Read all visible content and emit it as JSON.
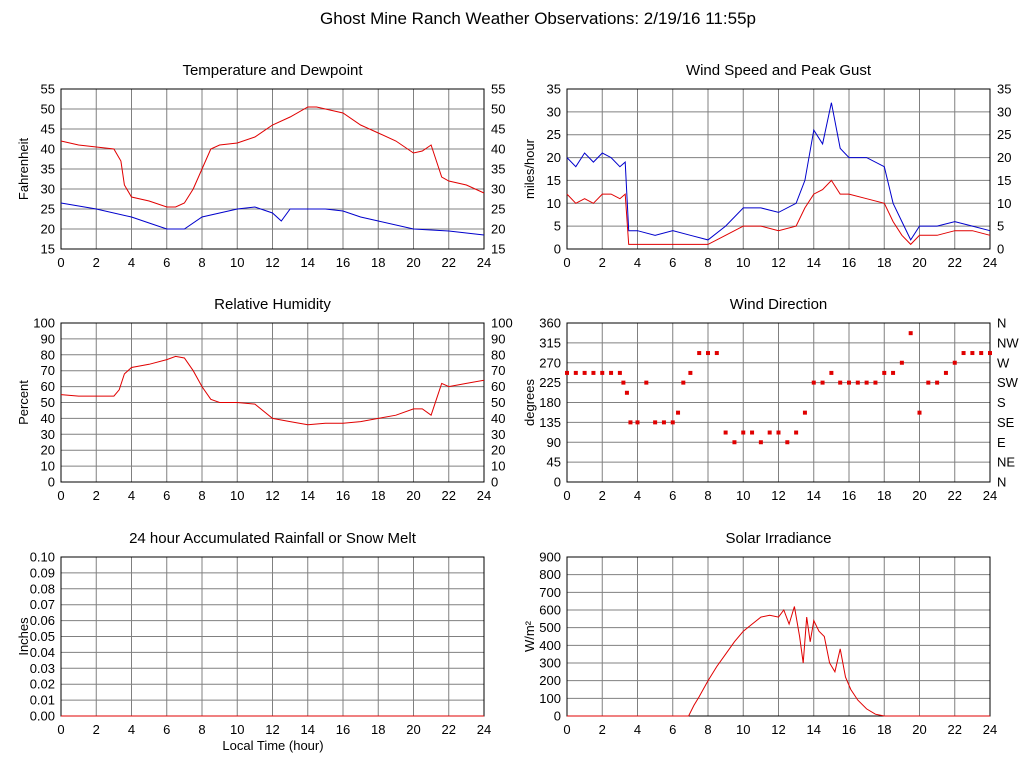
{
  "page": {
    "title": "Ghost Mine Ranch Weather Observations: 2/19/16 11:55p",
    "xlabel_bottom": "Local Time (hour)"
  },
  "chart_data": [
    {
      "id": "temp",
      "type": "line",
      "title": "Temperature and Dewpoint",
      "ylabel": "Fahrenheit",
      "xlabel": "",
      "xlim": [
        0,
        24
      ],
      "ylim": [
        15,
        55
      ],
      "xticks": [
        "0",
        "2",
        "4",
        "6",
        "8",
        "10",
        "12",
        "14",
        "16",
        "18",
        "20",
        "22",
        "24"
      ],
      "yticks": [
        "15",
        "20",
        "25",
        "30",
        "35",
        "40",
        "45",
        "50",
        "55"
      ],
      "right_yticks": [
        "15",
        "20",
        "25",
        "30",
        "35",
        "40",
        "45",
        "50",
        "55"
      ],
      "grid": true,
      "colors": {
        "red": "#e00000",
        "blue": "#0000cc"
      },
      "series": [
        {
          "color": "red",
          "x": [
            0,
            1,
            2,
            3,
            3.4,
            3.6,
            4,
            5,
            6,
            6.5,
            7,
            7.5,
            8,
            8.5,
            9,
            10,
            11,
            12,
            13,
            14,
            14.5,
            15,
            16,
            17,
            18,
            19,
            20,
            20.5,
            21,
            21.3,
            21.6,
            22,
            23,
            24
          ],
          "y": [
            42,
            41,
            40.5,
            40,
            37,
            31,
            28,
            27,
            25.5,
            25.5,
            26.5,
            30,
            35,
            40,
            41,
            41.5,
            43,
            46,
            48,
            50.5,
            50.5,
            50,
            49,
            46,
            44,
            42,
            39,
            39.5,
            41,
            37,
            33,
            32,
            31,
            29
          ]
        },
        {
          "color": "blue",
          "x": [
            0,
            2,
            4,
            5,
            6,
            7,
            8,
            10,
            11,
            12,
            12.5,
            13,
            14,
            15,
            16,
            17,
            18,
            20,
            22,
            24
          ],
          "y": [
            26.5,
            25,
            23,
            21.5,
            20,
            20,
            23,
            25,
            25.5,
            24,
            22,
            25,
            25,
            25,
            24.5,
            23,
            22,
            20,
            19.5,
            18.5
          ]
        }
      ]
    },
    {
      "id": "wind",
      "type": "line",
      "title": "Wind Speed and Peak Gust",
      "ylabel": "miles/hour",
      "xlabel": "",
      "xlim": [
        0,
        24
      ],
      "ylim": [
        0,
        35
      ],
      "xticks": [
        "0",
        "2",
        "4",
        "6",
        "8",
        "10",
        "12",
        "14",
        "16",
        "18",
        "20",
        "22",
        "24"
      ],
      "yticks": [
        "0",
        "5",
        "10",
        "15",
        "20",
        "25",
        "30",
        "35"
      ],
      "right_yticks": [
        "0",
        "5",
        "10",
        "15",
        "20",
        "25",
        "30",
        "35"
      ],
      "grid": true,
      "colors": {
        "red": "#e00000",
        "blue": "#0000cc"
      },
      "series": [
        {
          "color": "blue",
          "x": [
            0,
            0.5,
            1,
            1.5,
            2,
            2.5,
            3,
            3.3,
            3.5,
            4,
            5,
            6,
            7,
            8,
            9,
            10,
            11,
            12,
            13,
            13.5,
            14,
            14.5,
            15,
            15.5,
            16,
            17,
            18,
            18.5,
            19,
            19.5,
            20,
            21,
            22,
            23,
            24
          ],
          "y": [
            20,
            18,
            21,
            19,
            21,
            20,
            18,
            19,
            4,
            4,
            3,
            4,
            3,
            2,
            5,
            9,
            9,
            8,
            10,
            15,
            26,
            23,
            32,
            22,
            20,
            20,
            18,
            10,
            6,
            2,
            5,
            5,
            6,
            5,
            4
          ]
        },
        {
          "color": "red",
          "x": [
            0,
            0.5,
            1,
            1.5,
            2,
            2.5,
            3,
            3.3,
            3.5,
            4,
            5,
            6,
            7,
            8,
            9,
            10,
            11,
            12,
            13,
            13.5,
            14,
            14.5,
            15,
            15.5,
            16,
            17,
            18,
            18.5,
            19,
            19.5,
            20,
            21,
            22,
            23,
            24
          ],
          "y": [
            12,
            10,
            11,
            10,
            12,
            12,
            11,
            12,
            1,
            1,
            1,
            1,
            1,
            1,
            3,
            5,
            5,
            4,
            5,
            9,
            12,
            13,
            15,
            12,
            12,
            11,
            10,
            6,
            3,
            1,
            3,
            3,
            4,
            4,
            3
          ]
        }
      ]
    },
    {
      "id": "rh",
      "type": "line",
      "title": "Relative Humidity",
      "ylabel": "Percent",
      "xlabel": "",
      "xlim": [
        0,
        24
      ],
      "ylim": [
        0,
        100
      ],
      "xticks": [
        "0",
        "2",
        "4",
        "6",
        "8",
        "10",
        "12",
        "14",
        "16",
        "18",
        "20",
        "22",
        "24"
      ],
      "yticks": [
        "0",
        "10",
        "20",
        "30",
        "40",
        "50",
        "60",
        "70",
        "80",
        "90",
        "100"
      ],
      "right_yticks": [
        "0",
        "10",
        "20",
        "30",
        "40",
        "50",
        "60",
        "70",
        "80",
        "90",
        "100"
      ],
      "grid": true,
      "colors": {
        "red": "#e00000"
      },
      "series": [
        {
          "color": "red",
          "x": [
            0,
            1,
            2,
            3,
            3.3,
            3.6,
            4,
            5,
            6,
            6.5,
            7,
            7.5,
            8,
            8.5,
            9,
            10,
            11,
            12,
            13,
            14,
            15,
            16,
            17,
            18,
            19,
            20,
            20.5,
            21,
            21.3,
            21.6,
            22,
            23,
            24
          ],
          "y": [
            55,
            54,
            54,
            54,
            58,
            68,
            72,
            74,
            77,
            79,
            78,
            70,
            60,
            52,
            50,
            50,
            49,
            40,
            38,
            36,
            37,
            37,
            38,
            40,
            42,
            46,
            46,
            42,
            52,
            62,
            60,
            62,
            64
          ]
        }
      ]
    },
    {
      "id": "dir",
      "type": "scatter",
      "title": "Wind Direction",
      "ylabel": "degrees",
      "xlabel": "",
      "xlim": [
        0,
        24
      ],
      "ylim": [
        0,
        360
      ],
      "xticks": [
        "0",
        "2",
        "4",
        "6",
        "8",
        "10",
        "12",
        "14",
        "16",
        "18",
        "20",
        "22",
        "24"
      ],
      "yticks": [
        "0",
        "45",
        "90",
        "135",
        "180",
        "225",
        "270",
        "315",
        "360"
      ],
      "right_yticks": [
        "N",
        "NE",
        "E",
        "SE",
        "S",
        "SW",
        "W",
        "NW",
        "N"
      ],
      "grid": true,
      "colors": {
        "red": "#e00000"
      },
      "series": [
        {
          "color": "red",
          "x": [
            0,
            0.5,
            1,
            1.5,
            2,
            2.5,
            3,
            3.2,
            3.4,
            3.6,
            4,
            4.5,
            5,
            5.5,
            6,
            6.3,
            6.6,
            7,
            7.5,
            8,
            8.5,
            9,
            9.5,
            10,
            10.5,
            11,
            11.5,
            12,
            12.5,
            13,
            13.5,
            14,
            14.5,
            15,
            15.5,
            16,
            16.5,
            17,
            17.5,
            18,
            18.5,
            19,
            19.5,
            20,
            20.5,
            21,
            21.5,
            22,
            22.5,
            23,
            23.5,
            24
          ],
          "y": [
            247,
            247,
            247,
            247,
            247,
            247,
            247,
            225,
            202,
            135,
            135,
            225,
            135,
            135,
            135,
            157,
            225,
            247,
            292,
            292,
            292,
            112,
            90,
            112,
            112,
            90,
            112,
            112,
            90,
            112,
            157,
            225,
            225,
            247,
            225,
            225,
            225,
            225,
            225,
            247,
            247,
            270,
            337,
            157,
            225,
            225,
            247,
            270,
            292,
            292,
            292,
            292
          ]
        }
      ]
    },
    {
      "id": "rain",
      "type": "line",
      "title": "24 hour Accumulated Rainfall or Snow Melt",
      "ylabel": "Inches",
      "xlabel": "Local Time (hour)",
      "xlim": [
        0,
        24
      ],
      "ylim": [
        0,
        0.1
      ],
      "xticks": [
        "0",
        "2",
        "4",
        "6",
        "8",
        "10",
        "12",
        "14",
        "16",
        "18",
        "20",
        "22",
        "24"
      ],
      "yticks": [
        "0.00",
        "0.01",
        "0.02",
        "0.03",
        "0.04",
        "0.05",
        "0.06",
        "0.07",
        "0.08",
        "0.09",
        "0.10"
      ],
      "right_yticks": [],
      "grid": true,
      "colors": {
        "red": "#e00000"
      },
      "series": [
        {
          "color": "red",
          "x": [
            0,
            24
          ],
          "y": [
            0,
            0
          ]
        }
      ]
    },
    {
      "id": "solar",
      "type": "line",
      "title": "Solar Irradiance",
      "ylabel": "W/m²",
      "xlabel": "",
      "xlim": [
        0,
        24
      ],
      "ylim": [
        0,
        900
      ],
      "xticks": [
        "0",
        "2",
        "4",
        "6",
        "8",
        "10",
        "12",
        "14",
        "16",
        "18",
        "20",
        "22",
        "24"
      ],
      "yticks": [
        "0",
        "100",
        "200",
        "300",
        "400",
        "500",
        "600",
        "700",
        "800",
        "900"
      ],
      "right_yticks": [],
      "grid": true,
      "colors": {
        "red": "#e00000"
      },
      "series": [
        {
          "color": "red",
          "x": [
            0,
            6.9,
            7.2,
            7.5,
            8,
            8.5,
            9,
            9.5,
            10,
            10.5,
            11,
            11.5,
            12,
            12.3,
            12.6,
            12.9,
            13.2,
            13.4,
            13.6,
            13.8,
            14,
            14.3,
            14.6,
            14.9,
            15.2,
            15.5,
            15.8,
            16.1,
            16.5,
            17,
            17.5,
            18,
            24
          ],
          "y": [
            0,
            0,
            60,
            110,
            200,
            280,
            350,
            420,
            480,
            520,
            560,
            570,
            560,
            600,
            520,
            620,
            450,
            300,
            560,
            420,
            540,
            480,
            450,
            300,
            250,
            380,
            220,
            150,
            90,
            40,
            10,
            0,
            0
          ]
        }
      ]
    }
  ]
}
